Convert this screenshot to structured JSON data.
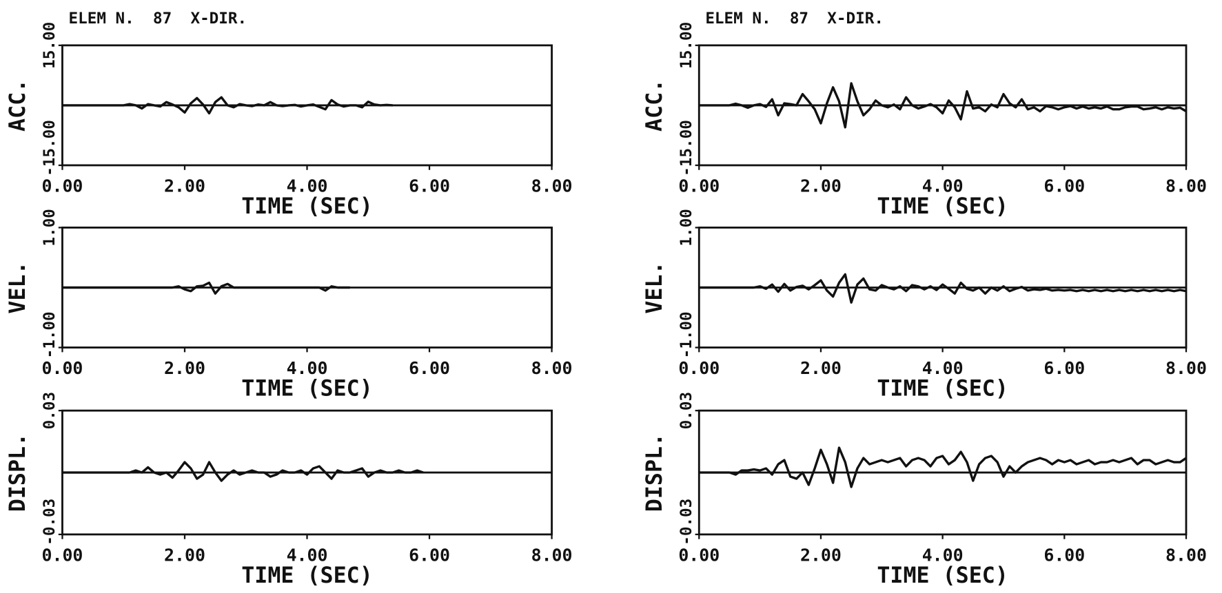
{
  "chart_data": [
    {
      "type": "line",
      "title": "ELEM N.  87  X-DIR.",
      "ylabel": "ACC.",
      "xlabel": "TIME (SEC)",
      "color": "#111111",
      "x": [
        0,
        0.1,
        0.2,
        0.3,
        0.4,
        0.5,
        0.6,
        0.7,
        0.8,
        0.9,
        1,
        1.1,
        1.2,
        1.3,
        1.4,
        1.5,
        1.6,
        1.7,
        1.8,
        1.9,
        2,
        2.1,
        2.2,
        2.3,
        2.4,
        2.5,
        2.6,
        2.7,
        2.8,
        2.9,
        3,
        3.1,
        3.2,
        3.3,
        3.4,
        3.5,
        3.6,
        3.7,
        3.8,
        3.9,
        4,
        4.1,
        4.2,
        4.3,
        4.4,
        4.5,
        4.6,
        4.7,
        4.8,
        4.9,
        5,
        5.1,
        5.2,
        5.3,
        5.4,
        5.5,
        5.6,
        5.7,
        5.8,
        5.9,
        6,
        6.1,
        6.2,
        6.3,
        6.4,
        6.5,
        6.6,
        6.7,
        6.8,
        6.9,
        7,
        7.1,
        7.2,
        7.3,
        7.4,
        7.5,
        7.6,
        7.7,
        7.8,
        7.9,
        8
      ],
      "values": [
        0,
        0,
        0,
        0,
        0,
        0,
        0,
        0,
        0,
        0,
        0,
        0.3,
        0,
        -0.8,
        0.3,
        0,
        -0.3,
        0.8,
        0.2,
        -0.5,
        -1.8,
        0.5,
        1.8,
        0.2,
        -2,
        0.8,
        2,
        0,
        -0.5,
        0.3,
        0,
        -0.2,
        0.2,
        0,
        0.8,
        0,
        -0.2,
        0,
        0.1,
        -0.3,
        0,
        0.2,
        -0.4,
        -1,
        1.3,
        0.2,
        -0.3,
        0,
        0,
        -0.5,
        0.9,
        0.2,
        0,
        0.1,
        0,
        null,
        null,
        null,
        null,
        null,
        null,
        null,
        null,
        null,
        null,
        null,
        null,
        null,
        null,
        null,
        null,
        null,
        null,
        null,
        null,
        null,
        null,
        null,
        null,
        null,
        null
      ],
      "xlim": [
        0,
        8
      ],
      "xticks": [
        {
          "value": 0,
          "label": "0.00"
        },
        {
          "value": 2,
          "label": "2.00"
        },
        {
          "value": 4,
          "label": "4.00"
        },
        {
          "value": 6,
          "label": "6.00"
        },
        {
          "value": 8,
          "label": "8.00"
        }
      ],
      "ylim": [
        -15,
        15
      ],
      "yticks": [
        {
          "value": -15,
          "label": "-15.00"
        },
        {
          "value": 15,
          "label": "15.00"
        }
      ]
    },
    {
      "type": "line",
      "ylabel": "VEL.",
      "xlabel": "TIME (SEC)",
      "color": "#111111",
      "x": [
        0,
        0.1,
        0.2,
        0.3,
        0.4,
        0.5,
        0.6,
        0.7,
        0.8,
        0.9,
        1,
        1.1,
        1.2,
        1.3,
        1.4,
        1.5,
        1.6,
        1.7,
        1.8,
        1.9,
        2,
        2.1,
        2.2,
        2.3,
        2.4,
        2.5,
        2.6,
        2.7,
        2.8,
        2.9,
        3,
        3.1,
        3.2,
        3.3,
        3.4,
        3.5,
        3.6,
        3.7,
        3.8,
        3.9,
        4,
        4.1,
        4.2,
        4.3,
        4.4,
        4.5,
        4.6,
        4.7,
        4.8,
        4.9,
        5,
        5.1,
        5.2,
        5.3,
        5.4,
        5.5,
        5.6,
        5.7,
        5.8,
        5.9,
        6,
        6.1,
        6.2,
        6.3,
        6.4,
        6.5,
        6.6,
        6.7,
        6.8,
        6.9,
        7,
        7.1,
        7.2,
        7.3,
        7.4,
        7.5,
        7.6,
        7.7,
        7.8,
        7.9,
        8
      ],
      "values": [
        0,
        0,
        0,
        0,
        0,
        0,
        0,
        0,
        0,
        0,
        0,
        0,
        0,
        0,
        0,
        0,
        0,
        0,
        0,
        0.02,
        -0.03,
        -0.06,
        0.02,
        0.03,
        0.08,
        -0.1,
        0.02,
        0.06,
        0,
        0,
        0,
        0,
        0,
        0,
        0,
        0,
        0,
        0,
        0,
        0,
        0,
        0,
        0,
        -0.05,
        0.02,
        0,
        0,
        0,
        null,
        null,
        null,
        null,
        null,
        null,
        null,
        null,
        null,
        null,
        null,
        null,
        null,
        null,
        null,
        null,
        null,
        null,
        null,
        null,
        null,
        null,
        null,
        null,
        null,
        null,
        null,
        null,
        null,
        null,
        null,
        null,
        null
      ],
      "xlim": [
        0,
        8
      ],
      "xticks": [
        {
          "value": 0,
          "label": "0.00"
        },
        {
          "value": 2,
          "label": "2.00"
        },
        {
          "value": 4,
          "label": "4.00"
        },
        {
          "value": 6,
          "label": "6.00"
        },
        {
          "value": 8,
          "label": "8.00"
        }
      ],
      "ylim": [
        -1,
        1
      ],
      "yticks": [
        {
          "value": -1,
          "label": "-1.00"
        },
        {
          "value": 1,
          "label": "1.00"
        }
      ]
    },
    {
      "type": "line",
      "ylabel": "DISPL.",
      "xlabel": "TIME (SEC)",
      "color": "#111111",
      "x": [
        0,
        0.1,
        0.2,
        0.3,
        0.4,
        0.5,
        0.6,
        0.7,
        0.8,
        0.9,
        1,
        1.1,
        1.2,
        1.3,
        1.4,
        1.5,
        1.6,
        1.7,
        1.8,
        1.9,
        2,
        2.1,
        2.2,
        2.3,
        2.4,
        2.5,
        2.6,
        2.7,
        2.8,
        2.9,
        3,
        3.1,
        3.2,
        3.3,
        3.4,
        3.5,
        3.6,
        3.7,
        3.8,
        3.9,
        4,
        4.1,
        4.2,
        4.3,
        4.4,
        4.5,
        4.6,
        4.7,
        4.8,
        4.9,
        5,
        5.1,
        5.2,
        5.3,
        5.4,
        5.5,
        5.6,
        5.7,
        5.8,
        5.9,
        6,
        6.1,
        6.2,
        6.3,
        6.4,
        6.5,
        6.6,
        6.7,
        6.8,
        6.9,
        7,
        7.1,
        7.2,
        7.3,
        7.4,
        7.5,
        7.6,
        7.7,
        7.8,
        7.9,
        8
      ],
      "values": [
        0,
        0,
        0,
        0,
        0,
        0,
        0,
        0,
        0,
        0,
        0,
        0,
        0.001,
        0,
        0.0025,
        0,
        -0.001,
        0,
        -0.0025,
        0.001,
        0.005,
        0.002,
        -0.003,
        -0.001,
        0.005,
        0,
        -0.004,
        -0.001,
        0.001,
        -0.001,
        0,
        0.001,
        0,
        0,
        -0.002,
        -0.001,
        0.001,
        0,
        0,
        0.001,
        -0.001,
        0.002,
        0.003,
        0,
        -0.003,
        0.001,
        0,
        0,
        0.001,
        0.002,
        -0.002,
        0,
        0.001,
        0,
        0,
        0.001,
        0,
        0,
        0.001,
        0,
        null,
        null,
        null,
        null,
        null,
        null,
        null,
        null,
        null,
        null,
        null,
        null,
        null,
        null,
        null,
        null,
        null,
        null,
        null,
        null,
        null
      ],
      "xlim": [
        0,
        8
      ],
      "xticks": [
        {
          "value": 0,
          "label": "0.00"
        },
        {
          "value": 2,
          "label": "2.00"
        },
        {
          "value": 4,
          "label": "4.00"
        },
        {
          "value": 6,
          "label": "6.00"
        },
        {
          "value": 8,
          "label": "8.00"
        }
      ],
      "ylim": [
        -0.03,
        0.03
      ],
      "yticks": [
        {
          "value": -0.03,
          "label": "-0.03"
        },
        {
          "value": 0.03,
          "label": "0.03"
        }
      ]
    },
    {
      "type": "line",
      "title": "ELEM N.  87  X-DIR.",
      "ylabel": "ACC.",
      "xlabel": "TIME (SEC)",
      "color": "#111111",
      "x": [
        0,
        0.1,
        0.2,
        0.3,
        0.4,
        0.5,
        0.6,
        0.7,
        0.8,
        0.9,
        1,
        1.1,
        1.2,
        1.3,
        1.4,
        1.5,
        1.6,
        1.7,
        1.8,
        1.9,
        2,
        2.1,
        2.2,
        2.3,
        2.4,
        2.5,
        2.6,
        2.7,
        2.8,
        2.9,
        3,
        3.1,
        3.2,
        3.3,
        3.4,
        3.5,
        3.6,
        3.7,
        3.8,
        3.9,
        4,
        4.1,
        4.2,
        4.3,
        4.4,
        4.5,
        4.6,
        4.7,
        4.8,
        4.9,
        5,
        5.1,
        5.2,
        5.3,
        5.4,
        5.5,
        5.6,
        5.7,
        5.8,
        5.9,
        6,
        6.1,
        6.2,
        6.3,
        6.4,
        6.5,
        6.6,
        6.7,
        6.8,
        6.9,
        7,
        7.1,
        7.2,
        7.3,
        7.4,
        7.5,
        7.6,
        7.7,
        7.8,
        7.9,
        8
      ],
      "values": [
        0,
        0,
        0,
        0,
        0,
        0,
        0.4,
        0,
        -0.6,
        0,
        0.3,
        -0.4,
        1.5,
        -2.5,
        0.5,
        0.3,
        0,
        2.8,
        1,
        -1,
        -4.5,
        0.5,
        4.5,
        1,
        -5.5,
        5.5,
        1,
        -2.5,
        -1,
        1.2,
        0,
        -0.5,
        0.2,
        -1,
        2,
        0,
        -0.8,
        -0.3,
        0.3,
        -0.5,
        -2,
        1.2,
        -0.5,
        -3.5,
        3.5,
        -0.8,
        -0.5,
        -1.5,
        0.2,
        -0.5,
        2.8,
        0.5,
        -0.5,
        1.5,
        -1,
        -0.5,
        -1.5,
        -0.2,
        -0.5,
        -1,
        -0.5,
        -0.2,
        -0.8,
        -0.3,
        -0.8,
        -0.5,
        -0.8,
        -0.3,
        -1,
        -1,
        -0.5,
        -0.3,
        -0.3,
        -1,
        -0.8,
        -0.5,
        -1,
        -0.5,
        -0.8,
        -0.6,
        -1.5
      ],
      "xlim": [
        0,
        8
      ],
      "xticks": [
        {
          "value": 0,
          "label": "0.00"
        },
        {
          "value": 2,
          "label": "2.00"
        },
        {
          "value": 4,
          "label": "4.00"
        },
        {
          "value": 6,
          "label": "6.00"
        },
        {
          "value": 8,
          "label": "8.00"
        }
      ],
      "ylim": [
        -15,
        15
      ],
      "yticks": [
        {
          "value": -15,
          "label": "-15.00"
        },
        {
          "value": 15,
          "label": "15.00"
        }
      ]
    },
    {
      "type": "line",
      "ylabel": "VEL.",
      "xlabel": "TIME (SEC)",
      "color": "#111111",
      "x": [
        0,
        0.1,
        0.2,
        0.3,
        0.4,
        0.5,
        0.6,
        0.7,
        0.8,
        0.9,
        1,
        1.1,
        1.2,
        1.3,
        1.4,
        1.5,
        1.6,
        1.7,
        1.8,
        1.9,
        2,
        2.1,
        2.2,
        2.3,
        2.4,
        2.5,
        2.6,
        2.7,
        2.8,
        2.9,
        3,
        3.1,
        3.2,
        3.3,
        3.4,
        3.5,
        3.6,
        3.7,
        3.8,
        3.9,
        4,
        4.1,
        4.2,
        4.3,
        4.4,
        4.5,
        4.6,
        4.7,
        4.8,
        4.9,
        5,
        5.1,
        5.2,
        5.3,
        5.4,
        5.5,
        5.6,
        5.7,
        5.8,
        5.9,
        6,
        6.1,
        6.2,
        6.3,
        6.4,
        6.5,
        6.6,
        6.7,
        6.8,
        6.9,
        7,
        7.1,
        7.2,
        7.3,
        7.4,
        7.5,
        7.6,
        7.7,
        7.8,
        7.9,
        8
      ],
      "values": [
        0,
        0,
        0,
        0,
        0,
        0,
        0,
        0,
        0,
        0,
        0.02,
        -0.02,
        0.05,
        -0.07,
        0.06,
        -0.05,
        0.01,
        0.03,
        -0.03,
        0.04,
        0.12,
        -0.05,
        -0.15,
        0.08,
        0.22,
        -0.25,
        0.05,
        0.15,
        -0.03,
        -0.05,
        0.04,
        0,
        -0.03,
        0.02,
        -0.06,
        0.04,
        0.02,
        -0.03,
        0.02,
        -0.04,
        0.05,
        -0.02,
        -0.1,
        0.08,
        -0.02,
        -0.05,
        0,
        -0.1,
        0,
        -0.05,
        0.02,
        -0.06,
        -0.02,
        0.01,
        -0.05,
        -0.03,
        -0.04,
        -0.02,
        -0.05,
        -0.04,
        -0.05,
        -0.04,
        -0.06,
        -0.04,
        -0.06,
        -0.04,
        -0.06,
        -0.04,
        -0.06,
        -0.04,
        -0.06,
        -0.04,
        -0.06,
        -0.04,
        -0.06,
        -0.04,
        -0.06,
        -0.04,
        -0.06,
        -0.04,
        -0.06
      ],
      "xlim": [
        0,
        8
      ],
      "xticks": [
        {
          "value": 0,
          "label": "0.00"
        },
        {
          "value": 2,
          "label": "2.00"
        },
        {
          "value": 4,
          "label": "4.00"
        },
        {
          "value": 6,
          "label": "6.00"
        },
        {
          "value": 8,
          "label": "8.00"
        }
      ],
      "ylim": [
        -1,
        1
      ],
      "yticks": [
        {
          "value": -1,
          "label": "-1.00"
        },
        {
          "value": 1,
          "label": "1.00"
        }
      ]
    },
    {
      "type": "line",
      "ylabel": "DISPL.",
      "xlabel": "TIME (SEC)",
      "color": "#111111",
      "x": [
        0,
        0.1,
        0.2,
        0.3,
        0.4,
        0.5,
        0.6,
        0.7,
        0.8,
        0.9,
        1,
        1.1,
        1.2,
        1.3,
        1.4,
        1.5,
        1.6,
        1.7,
        1.8,
        1.9,
        2,
        2.1,
        2.2,
        2.3,
        2.4,
        2.5,
        2.6,
        2.7,
        2.8,
        2.9,
        3,
        3.1,
        3.2,
        3.3,
        3.4,
        3.5,
        3.6,
        3.7,
        3.8,
        3.9,
        4,
        4.1,
        4.2,
        4.3,
        4.4,
        4.5,
        4.6,
        4.7,
        4.8,
        4.9,
        5,
        5.1,
        5.2,
        5.3,
        5.4,
        5.5,
        5.6,
        5.7,
        5.8,
        5.9,
        6,
        6.1,
        6.2,
        6.3,
        6.4,
        6.5,
        6.6,
        6.7,
        6.8,
        6.9,
        7,
        7.1,
        7.2,
        7.3,
        7.4,
        7.5,
        7.6,
        7.7,
        7.8,
        7.9,
        8
      ],
      "values": [
        0,
        0,
        0,
        0,
        0,
        0,
        -0.001,
        0.001,
        0.001,
        0.0015,
        0.001,
        0.002,
        -0.001,
        0.004,
        0.006,
        -0.002,
        -0.003,
        0,
        -0.006,
        0.002,
        0.011,
        0.004,
        -0.005,
        0.012,
        0.005,
        -0.007,
        0.002,
        0.007,
        0.004,
        0.005,
        0.006,
        0.005,
        0.006,
        0.007,
        0.003,
        0.006,
        0.007,
        0.006,
        0.003,
        0.007,
        0.008,
        0.004,
        0.006,
        0.01,
        0.005,
        -0.004,
        0.004,
        0.007,
        0.008,
        0.005,
        -0.002,
        0.003,
        0,
        0.003,
        0.005,
        0.006,
        0.007,
        0.006,
        0.004,
        0.006,
        0.005,
        0.006,
        0.004,
        0.005,
        0.006,
        0.004,
        0.005,
        0.005,
        0.006,
        0.005,
        0.006,
        0.007,
        0.004,
        0.006,
        0.006,
        0.004,
        0.005,
        0.006,
        0.005,
        0.005,
        0.007
      ],
      "xlim": [
        0,
        8
      ],
      "xticks": [
        {
          "value": 0,
          "label": "0.00"
        },
        {
          "value": 2,
          "label": "2.00"
        },
        {
          "value": 4,
          "label": "4.00"
        },
        {
          "value": 6,
          "label": "6.00"
        },
        {
          "value": 8,
          "label": "8.00"
        }
      ],
      "ylim": [
        -0.03,
        0.03
      ],
      "yticks": [
        {
          "value": -0.03,
          "label": "-0.03"
        },
        {
          "value": 0.03,
          "label": "0.03"
        }
      ]
    }
  ]
}
